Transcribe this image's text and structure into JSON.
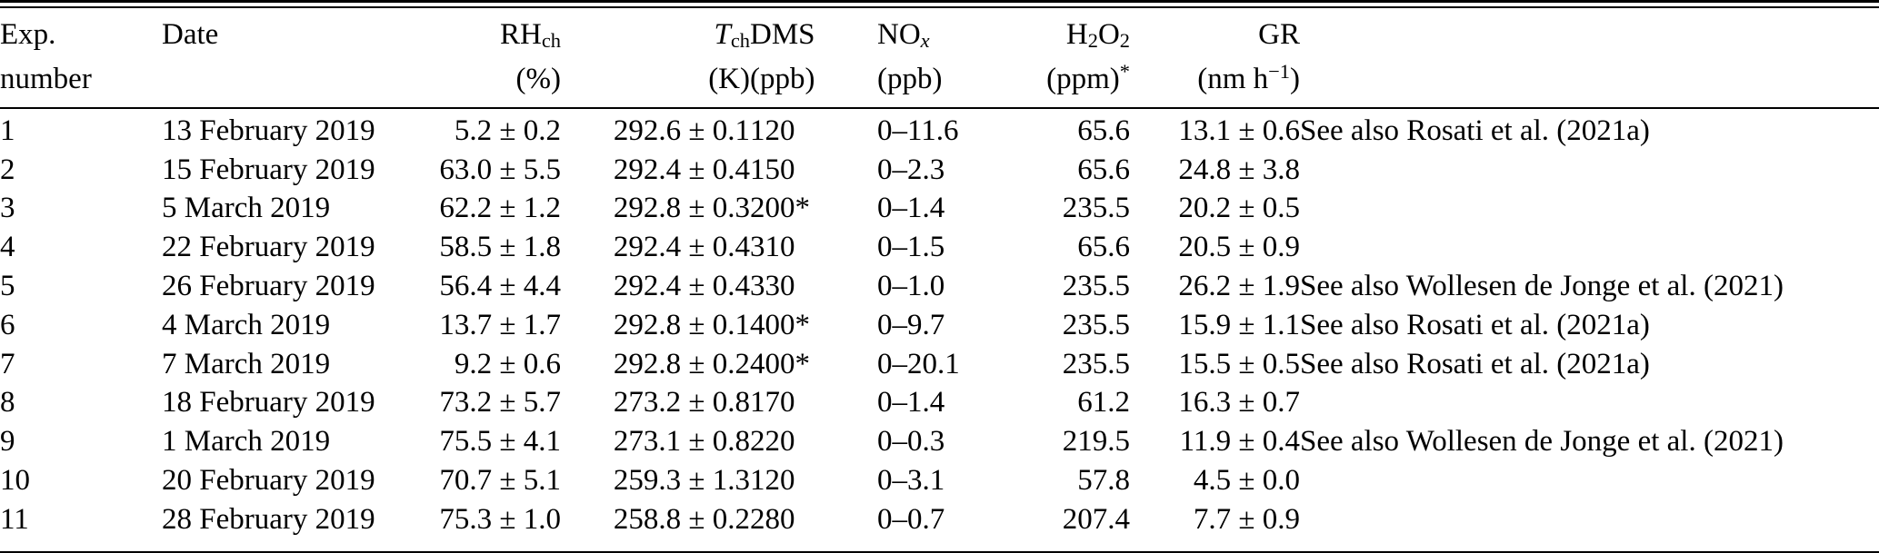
{
  "page": {
    "background_color": "#ffffff",
    "text_color": "#000000"
  },
  "table": {
    "column_order": [
      "exp",
      "date",
      "rh",
      "t",
      "dms",
      "nox",
      "h2o2",
      "gr",
      "notes"
    ],
    "header": {
      "exp": {
        "line1": [
          {
            "t": "Exp."
          }
        ],
        "line2": [
          {
            "t": "number"
          }
        ]
      },
      "date": {
        "line1": [
          {
            "t": "Date"
          }
        ],
        "line2": []
      },
      "rh": {
        "line1": [
          {
            "t": "RH"
          },
          {
            "t": "ch",
            "sub": true
          }
        ],
        "line2": [
          {
            "t": "(%)"
          }
        ]
      },
      "t": {
        "line1": [
          {
            "t": "T",
            "italic": true
          },
          {
            "t": "ch",
            "sub": true
          }
        ],
        "line2": [
          {
            "t": "(K)"
          }
        ]
      },
      "dms": {
        "line1": [
          {
            "t": "DMS"
          }
        ],
        "line2": [
          {
            "t": "(ppb)"
          }
        ]
      },
      "nox": {
        "line1": [
          {
            "t": "NO"
          },
          {
            "t": "x",
            "sub": true,
            "italic": true
          }
        ],
        "line2": [
          {
            "t": "(ppb)"
          }
        ]
      },
      "h2o2": {
        "line1": [
          {
            "t": "H"
          },
          {
            "t": "2",
            "sub": true
          },
          {
            "t": "O"
          },
          {
            "t": "2",
            "sub": true
          }
        ],
        "line2": [
          {
            "t": "(ppm)"
          },
          {
            "t": "*",
            "sup": true
          }
        ]
      },
      "gr": {
        "line1": [
          {
            "t": "GR"
          }
        ],
        "line2": [
          {
            "t": "(nm h"
          },
          {
            "t": "−1",
            "sup": true
          },
          {
            "t": ")"
          }
        ]
      },
      "notes": {
        "line1": [],
        "line2": []
      }
    },
    "rows": [
      {
        "exp": "1",
        "date": "13 February 2019",
        "rh": "5.2 ± 0.2",
        "t": "292.6 ± 0.1",
        "dms": "120",
        "nox": "0–11.6",
        "h2o2": "65.6",
        "gr": "13.1 ± 0.6",
        "notes": "See also Rosati et al. (2021a)"
      },
      {
        "exp": "2",
        "date": "15 February 2019",
        "rh": "63.0 ± 5.5",
        "t": "292.4 ± 0.4",
        "dms": "150",
        "nox": "0–2.3",
        "h2o2": "65.6",
        "gr": "24.8 ± 3.8",
        "notes": ""
      },
      {
        "exp": "3",
        "date": "5 March 2019",
        "rh": "62.2 ± 1.2",
        "t": "292.8 ± 0.3",
        "dms": "200*",
        "nox": "0–1.4",
        "h2o2": "235.5",
        "gr": "20.2 ± 0.5",
        "notes": ""
      },
      {
        "exp": "4",
        "date": "22 February 2019",
        "rh": "58.5 ± 1.8",
        "t": "292.4 ± 0.4",
        "dms": "310",
        "nox": "0–1.5",
        "h2o2": "65.6",
        "gr": "20.5 ± 0.9",
        "notes": ""
      },
      {
        "exp": "5",
        "date": "26 February 2019",
        "rh": "56.4 ± 4.4",
        "t": "292.4 ± 0.4",
        "dms": "330",
        "nox": "0–1.0",
        "h2o2": "235.5",
        "gr": "26.2 ± 1.9",
        "notes": "See also Wollesen de Jonge et al. (2021)"
      },
      {
        "exp": "6",
        "date": "4 March 2019",
        "rh": "13.7 ± 1.7",
        "t": "292.8 ± 0.1",
        "dms": "400*",
        "nox": "0–9.7",
        "h2o2": "235.5",
        "gr": "15.9 ± 1.1",
        "notes": "See also Rosati et al. (2021a)"
      },
      {
        "exp": "7",
        "date": "7 March 2019",
        "rh": "9.2 ± 0.6",
        "t": "292.8 ± 0.2",
        "dms": "400*",
        "nox": "0–20.1",
        "h2o2": "235.5",
        "gr": "15.5 ± 0.5",
        "notes": "See also Rosati et al. (2021a)"
      },
      {
        "exp": "8",
        "date": "18 February 2019",
        "rh": "73.2 ± 5.7",
        "t": "273.2 ± 0.8",
        "dms": "170",
        "nox": "0–1.4",
        "h2o2": "61.2",
        "gr": "16.3 ± 0.7",
        "notes": ""
      },
      {
        "exp": "9",
        "date": "1 March 2019",
        "rh": "75.5 ± 4.1",
        "t": "273.1 ± 0.8",
        "dms": "220",
        "nox": "0–0.3",
        "h2o2": "219.5",
        "gr": "11.9 ± 0.4",
        "notes": "See also Wollesen de Jonge et al. (2021)"
      },
      {
        "exp": "10",
        "date": "20 February 2019",
        "rh": "70.7 ± 5.1",
        "t": "259.3 ± 1.3",
        "dms": "120",
        "nox": "0–3.1",
        "h2o2": "57.8",
        "gr": "4.5 ± 0.0",
        "notes": ""
      },
      {
        "exp": "11",
        "date": "28 February 2019",
        "rh": "75.3 ± 1.0",
        "t": "258.8 ± 0.2",
        "dms": "280",
        "nox": "0–0.7",
        "h2o2": "207.4",
        "gr": "7.7 ± 0.9",
        "notes": ""
      }
    ]
  }
}
